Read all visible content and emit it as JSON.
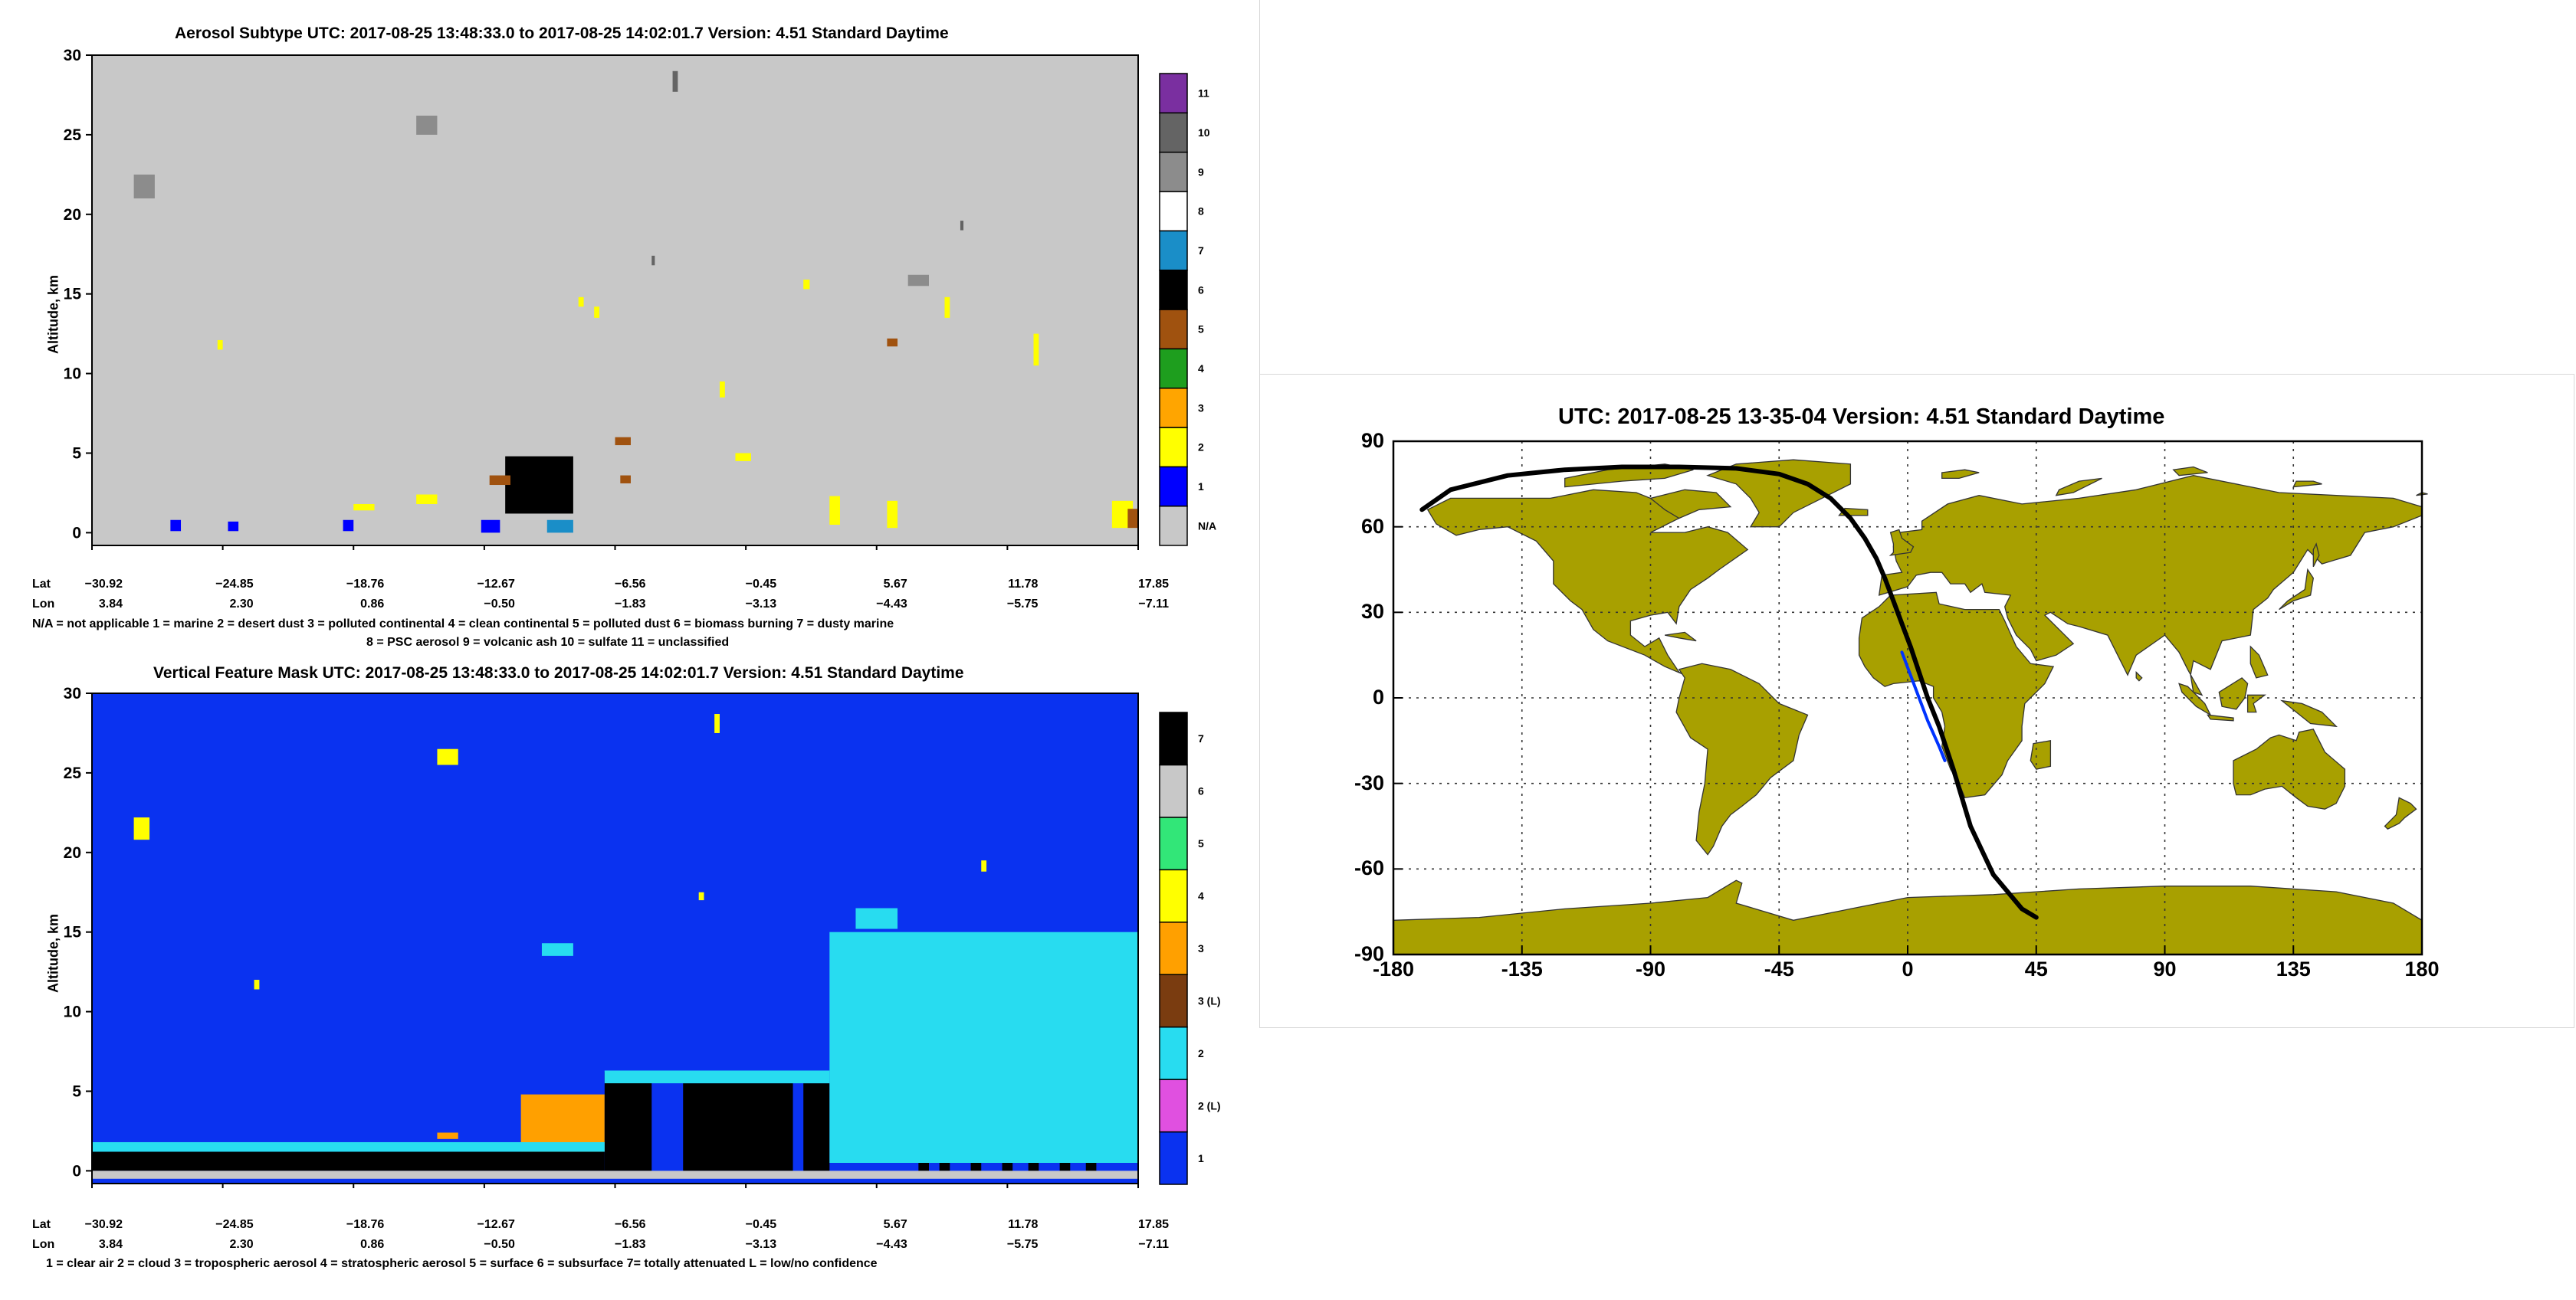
{
  "aerosol_panel": {
    "title": "Aerosol Subtype    UTC:  2017-08-25   13:48:33.0  to  2017-08-25   14:02:01.7    Version:  4.51  Standard Daytime",
    "ylabel": "Altitude, km",
    "lat_label": "Lat",
    "lon_label": "Lon",
    "lat_ticks": [
      "−30.92",
      "−24.85",
      "−18.76",
      "−12.67",
      "−6.56",
      "−0.45",
      "5.67",
      "11.78",
      "17.85"
    ],
    "lon_ticks": [
      "3.84",
      "2.30",
      "0.86",
      "−0.50",
      "−1.83",
      "−3.13",
      "−4.43",
      "−5.75",
      "−7.11"
    ],
    "legend_line1": "N/A = not applicable     1 = marine     2 = desert dust     3 = polluted continental     4 = clean continental     5 = polluted dust     6 = biomass burning     7 = dusty marine",
    "legend_line2": "8 = PSC aerosol     9 = volcanic ash     10 = sulfate     11 = unclassified"
  },
  "vfm_panel": {
    "title": "Vertical Feature Mask    UTC:  2017-08-25   13:48:33.0  to  2017-08-25   14:02:01.7    Version:  4.51  Standard Daytime",
    "ylabel": "Altitude, km",
    "lat_label": "Lat",
    "lon_label": "Lon",
    "lat_ticks": [
      "−30.92",
      "−24.85",
      "−18.76",
      "−12.67",
      "−6.56",
      "−0.45",
      "5.67",
      "11.78",
      "17.85"
    ],
    "lon_ticks": [
      "3.84",
      "2.30",
      "0.86",
      "−0.50",
      "−1.83",
      "−3.13",
      "−4.43",
      "−5.75",
      "−7.11"
    ],
    "legend_line1": "1 = clear air     2 = cloud     3 = tropospheric aerosol     4 = stratospheric aerosol     5 = surface     6 = subsurface     7= totally attenuated     L = low/no confidence"
  },
  "map_panel": {
    "title": "UTC: 2017-08-25  13-35-04    Version: 4.51  Standard    Daytime"
  },
  "chart_data": [
    {
      "type": "heatmap",
      "name": "aerosol_subtype",
      "ylim": [
        0,
        30
      ],
      "y_ticks": [
        0,
        5,
        10,
        15,
        20,
        25,
        30
      ],
      "background_class": "N/A",
      "colorbar": [
        {
          "label": "N/A",
          "color": "#c8c8c8"
        },
        {
          "label": "1",
          "color": "#0000ff"
        },
        {
          "label": "2",
          "color": "#ffff00"
        },
        {
          "label": "3",
          "color": "#ffa500"
        },
        {
          "label": "4",
          "color": "#1e9e1e"
        },
        {
          "label": "5",
          "color": "#a0520f"
        },
        {
          "label": "6",
          "color": "#000000"
        },
        {
          "label": "7",
          "color": "#1a8ec8"
        },
        {
          "label": "8",
          "color": "#ffffff"
        },
        {
          "label": "9",
          "color": "#8c8c8c"
        },
        {
          "label": "10",
          "color": "#646464"
        },
        {
          "label": "11",
          "color": "#7a2fa0"
        }
      ],
      "features": [
        {
          "class": "9",
          "x": [
            0.04,
            0.06
          ],
          "y": [
            21,
            22.5
          ]
        },
        {
          "class": "9",
          "x": [
            0.31,
            0.33
          ],
          "y": [
            25,
            26.2
          ]
        },
        {
          "class": "10",
          "x": [
            0.555,
            0.56
          ],
          "y": [
            27.7,
            29
          ]
        },
        {
          "class": "9",
          "x": [
            0.78,
            0.8
          ],
          "y": [
            15.5,
            16.2
          ]
        },
        {
          "class": "10",
          "x": [
            0.83,
            0.833
          ],
          "y": [
            19,
            19.6
          ]
        },
        {
          "class": "10",
          "x": [
            0.535,
            0.538
          ],
          "y": [
            16.8,
            17.4
          ]
        },
        {
          "class": "2",
          "x": [
            0.12,
            0.125
          ],
          "y": [
            11.5,
            12.1
          ]
        },
        {
          "class": "2",
          "x": [
            0.465,
            0.47
          ],
          "y": [
            14.2,
            14.8
          ]
        },
        {
          "class": "2",
          "x": [
            0.48,
            0.485
          ],
          "y": [
            13.5,
            14.2
          ]
        },
        {
          "class": "2",
          "x": [
            0.68,
            0.686
          ],
          "y": [
            15.3,
            15.9
          ]
        },
        {
          "class": "5",
          "x": [
            0.76,
            0.77
          ],
          "y": [
            11.7,
            12.2
          ]
        },
        {
          "class": "2",
          "x": [
            0.815,
            0.82
          ],
          "y": [
            13.5,
            14.8
          ]
        },
        {
          "class": "2",
          "x": [
            0.9,
            0.905
          ],
          "y": [
            10.5,
            12.5
          ]
        },
        {
          "class": "2",
          "x": [
            0.6,
            0.605
          ],
          "y": [
            8.5,
            9.5
          ]
        },
        {
          "class": "2",
          "x": [
            0.615,
            0.63
          ],
          "y": [
            4.5,
            5.0
          ]
        },
        {
          "class": "5",
          "x": [
            0.5,
            0.515
          ],
          "y": [
            5.5,
            6.0
          ]
        },
        {
          "class": "2",
          "x": [
            0.31,
            0.33
          ],
          "y": [
            1.8,
            2.4
          ]
        },
        {
          "class": "2",
          "x": [
            0.25,
            0.27
          ],
          "y": [
            1.4,
            1.8
          ]
        },
        {
          "class": "6",
          "x": [
            0.395,
            0.46
          ],
          "y": [
            1.2,
            4.8
          ]
        },
        {
          "class": "5",
          "x": [
            0.38,
            0.4
          ],
          "y": [
            3.0,
            3.6
          ]
        },
        {
          "class": "5",
          "x": [
            0.505,
            0.515
          ],
          "y": [
            3.1,
            3.6
          ]
        },
        {
          "class": "7",
          "x": [
            0.435,
            0.46
          ],
          "y": [
            0.0,
            0.8
          ]
        },
        {
          "class": "1",
          "x": [
            0.372,
            0.39
          ],
          "y": [
            0.0,
            0.8
          ]
        },
        {
          "class": "1",
          "x": [
            0.075,
            0.085
          ],
          "y": [
            0.1,
            0.8
          ]
        },
        {
          "class": "1",
          "x": [
            0.13,
            0.14
          ],
          "y": [
            0.1,
            0.7
          ]
        },
        {
          "class": "1",
          "x": [
            0.24,
            0.25
          ],
          "y": [
            0.1,
            0.8
          ]
        },
        {
          "class": "2",
          "x": [
            0.705,
            0.715
          ],
          "y": [
            0.5,
            2.3
          ]
        },
        {
          "class": "2",
          "x": [
            0.76,
            0.77
          ],
          "y": [
            0.3,
            2.0
          ]
        },
        {
          "class": "2",
          "x": [
            0.975,
            0.995
          ],
          "y": [
            0.3,
            2.0
          ]
        },
        {
          "class": "5",
          "x": [
            0.99,
            1.0
          ],
          "y": [
            0.3,
            1.5
          ]
        }
      ]
    },
    {
      "type": "heatmap",
      "name": "vertical_feature_mask",
      "ylim": [
        0,
        30
      ],
      "y_ticks": [
        0,
        5,
        10,
        15,
        20,
        25,
        30
      ],
      "background_class": "1",
      "colorbar": [
        {
          "label": "1",
          "color": "#0a32f0"
        },
        {
          "label": "2 (L)",
          "color": "#e050e0"
        },
        {
          "label": "2",
          "color": "#28dcf0"
        },
        {
          "label": "3 (L)",
          "color": "#7a3c10"
        },
        {
          "label": "3",
          "color": "#ffa000"
        },
        {
          "label": "4",
          "color": "#ffff00"
        },
        {
          "label": "5",
          "color": "#32e678"
        },
        {
          "label": "6",
          "color": "#c8c8c8"
        },
        {
          "label": "7",
          "color": "#000000"
        }
      ],
      "features": [
        {
          "class": "4",
          "x": [
            0.04,
            0.055
          ],
          "y": [
            20.8,
            22.2
          ]
        },
        {
          "class": "4",
          "x": [
            0.33,
            0.35
          ],
          "y": [
            25.5,
            26.5
          ]
        },
        {
          "class": "4",
          "x": [
            0.595,
            0.6
          ],
          "y": [
            27.5,
            28.7
          ]
        },
        {
          "class": "4",
          "x": [
            0.58,
            0.585
          ],
          "y": [
            17.0,
            17.5
          ]
        },
        {
          "class": "4",
          "x": [
            0.85,
            0.855
          ],
          "y": [
            18.8,
            19.5
          ]
        },
        {
          "class": "2",
          "x": [
            0.43,
            0.46
          ],
          "y": [
            13.5,
            14.3
          ]
        },
        {
          "class": "2",
          "x": [
            0.73,
            0.77
          ],
          "y": [
            15.2,
            16.5
          ]
        },
        {
          "class": "2",
          "x": [
            0.735,
            0.77
          ],
          "y": [
            11.2,
            12.0
          ]
        },
        {
          "class": "4",
          "x": [
            0.155,
            0.16
          ],
          "y": [
            11.4,
            12.0
          ]
        },
        {
          "class": "3",
          "x": [
            0.41,
            0.49
          ],
          "y": [
            1.2,
            4.8
          ]
        },
        {
          "class": "3",
          "x": [
            0.33,
            0.35
          ],
          "y": [
            2.0,
            2.4
          ]
        },
        {
          "class": "7",
          "x": [
            0.49,
            0.535
          ],
          "y": [
            0.0,
            6.2
          ]
        },
        {
          "class": "7",
          "x": [
            0.565,
            0.67
          ],
          "y": [
            0.0,
            5.5
          ]
        },
        {
          "class": "7",
          "x": [
            0.68,
            0.705
          ],
          "y": [
            0.0,
            5.5
          ]
        },
        {
          "class": "7",
          "x": [
            0.79,
            0.8
          ],
          "y": [
            0.0,
            12.0
          ]
        },
        {
          "class": "7",
          "x": [
            0.81,
            0.82
          ],
          "y": [
            0.0,
            10.0
          ]
        },
        {
          "class": "7",
          "x": [
            0.84,
            0.85
          ],
          "y": [
            0.0,
            13.5
          ]
        },
        {
          "class": "7",
          "x": [
            0.87,
            0.88
          ],
          "y": [
            0.0,
            10.5
          ]
        },
        {
          "class": "7",
          "x": [
            0.895,
            0.905
          ],
          "y": [
            0.0,
            13.0
          ]
        },
        {
          "class": "7",
          "x": [
            0.925,
            0.935
          ],
          "y": [
            0.0,
            12.0
          ]
        },
        {
          "class": "7",
          "x": [
            0.95,
            0.96
          ],
          "y": [
            0.0,
            10.0
          ]
        },
        {
          "class": "7",
          "x": [
            0.0,
            0.49
          ],
          "y": [
            0.0,
            1.2
          ]
        },
        {
          "class": "2",
          "x": [
            0.0,
            0.49
          ],
          "y": [
            1.2,
            1.8
          ]
        },
        {
          "class": "2",
          "x": [
            0.49,
            0.705
          ],
          "y": [
            5.5,
            6.3
          ]
        },
        {
          "class": "2",
          "x": [
            0.705,
            1.0
          ],
          "y": [
            0.5,
            15.0
          ]
        },
        {
          "class": "6",
          "x": [
            0.0,
            1.0
          ],
          "y": [
            -0.5,
            0.0
          ]
        }
      ]
    },
    {
      "type": "line",
      "name": "orbit_track_map",
      "xlim": [
        -180,
        180
      ],
      "ylim": [
        -90,
        90
      ],
      "x_ticks": [
        -180,
        -135,
        -90,
        -45,
        0,
        45,
        90,
        135,
        180
      ],
      "y_ticks": [
        -90,
        -60,
        -30,
        0,
        30,
        60,
        90
      ],
      "grid": true,
      "series": [
        {
          "color": "#000000",
          "x": [
            -170,
            -160,
            -140,
            -120,
            -100,
            -80,
            -60,
            -45,
            -35,
            -27,
            -20,
            -15,
            -11,
            -8,
            -5,
            -2,
            1,
            4,
            7,
            11,
            16,
            22,
            30,
            40,
            45
          ],
          "y": [
            66,
            73,
            78,
            80,
            81,
            81,
            80.5,
            78.5,
            75,
            70,
            63,
            56,
            49,
            42,
            34,
            26,
            18,
            9,
            0,
            -10,
            -25,
            -45,
            -62,
            -74,
            -77
          ]
        },
        {
          "color": "#0033ff",
          "x": [
            -2,
            1,
            4,
            7,
            11,
            13
          ],
          "y": [
            16,
            8,
            0,
            -8,
            -17,
            -22
          ]
        }
      ]
    }
  ]
}
